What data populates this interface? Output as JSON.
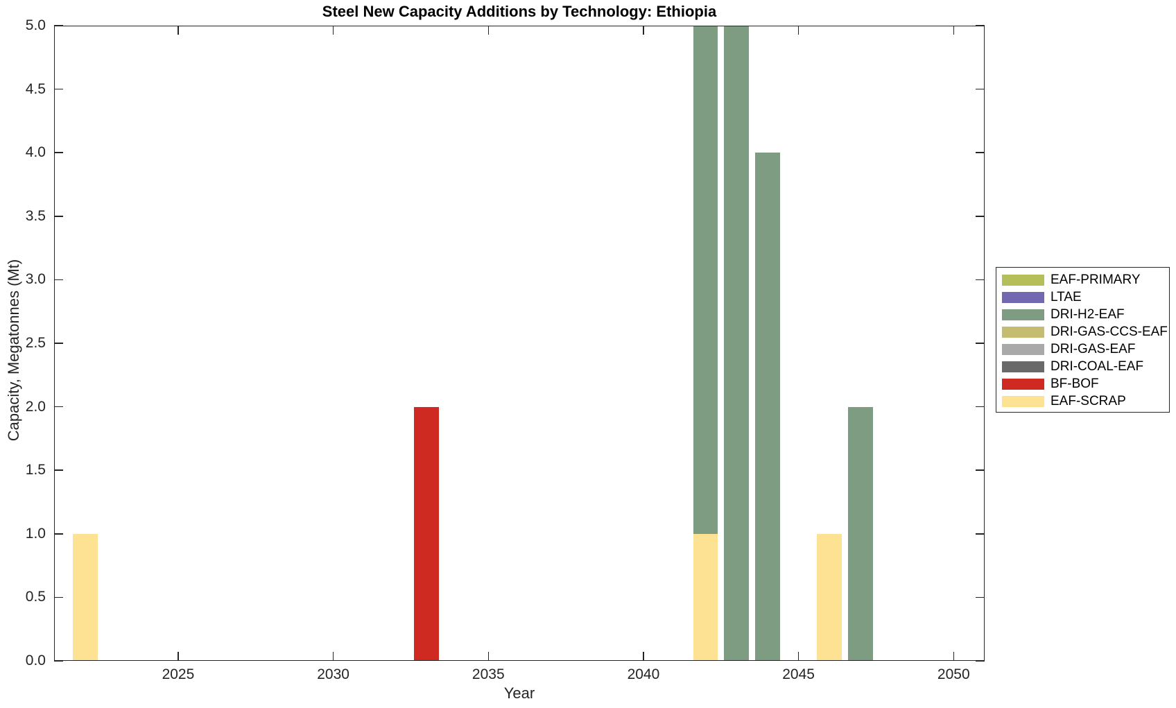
{
  "chart_data": {
    "type": "bar",
    "stacked": true,
    "title": "Steel New Capacity Additions by Technology: Ethiopia",
    "xlabel": "Year",
    "ylabel": "Capacity, Megatonnes (Mt)",
    "xlim": [
      2021,
      2051
    ],
    "ylim": [
      0,
      5
    ],
    "grid": false,
    "legend_position": "right-outside",
    "bar_width_years": 0.8,
    "x_tick_labels": [
      "2025",
      "2030",
      "2035",
      "2040",
      "2045",
      "2050"
    ],
    "y_tick_labels": [
      "0.0",
      "0.5",
      "1.0",
      "1.5",
      "2.0",
      "2.5",
      "3.0",
      "3.5",
      "4.0",
      "4.5",
      "5.0"
    ],
    "series": [
      {
        "name": "EAF-PRIMARY",
        "color": "#b4bf5a"
      },
      {
        "name": "LTAE",
        "color": "#7168b1"
      },
      {
        "name": "DRI-H2-EAF",
        "color": "#7d9c81"
      },
      {
        "name": "DRI-GAS-CCS-EAF",
        "color": "#c4bd70"
      },
      {
        "name": "DRI-GAS-EAF",
        "color": "#a9a9a9"
      },
      {
        "name": "DRI-COAL-EAF",
        "color": "#696969"
      },
      {
        "name": "BF-BOF",
        "color": "#cf2a21"
      },
      {
        "name": "EAF-SCRAP",
        "color": "#fde294"
      }
    ],
    "bars": [
      {
        "year": 2022,
        "segments": [
          {
            "series": "EAF-SCRAP",
            "value": 1.0
          }
        ]
      },
      {
        "year": 2033,
        "segments": [
          {
            "series": "BF-BOF",
            "value": 2.0
          }
        ]
      },
      {
        "year": 2042,
        "segments": [
          {
            "series": "EAF-SCRAP",
            "value": 1.0
          },
          {
            "series": "DRI-H2-EAF",
            "value": 4.0
          }
        ]
      },
      {
        "year": 2043,
        "segments": [
          {
            "series": "DRI-H2-EAF",
            "value": 5.0
          }
        ]
      },
      {
        "year": 2044,
        "segments": [
          {
            "series": "DRI-H2-EAF",
            "value": 4.0
          }
        ]
      },
      {
        "year": 2046,
        "segments": [
          {
            "series": "EAF-SCRAP",
            "value": 1.0
          }
        ]
      },
      {
        "year": 2047,
        "segments": [
          {
            "series": "DRI-H2-EAF",
            "value": 2.0
          }
        ]
      }
    ]
  }
}
